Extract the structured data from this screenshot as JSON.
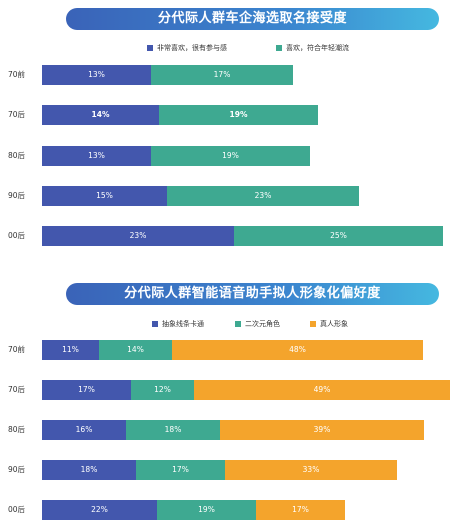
{
  "colors": {
    "blue": "#4357ad",
    "teal": "#3ea991",
    "orange": "#f4a42c"
  },
  "chart_data": [
    {
      "type": "bar",
      "orientation": "horizontal",
      "stacked": true,
      "title": "分代际人群车企海选取名接受度",
      "categories": [
        "70前",
        "70后",
        "80后",
        "90后",
        "00后"
      ],
      "series": [
        {
          "name": "非常喜欢，很有参与感",
          "color": "#4357ad",
          "values": [
            13,
            14,
            13,
            15,
            23
          ]
        },
        {
          "name": "喜欢，符合年轻潮流",
          "color": "#3ea991",
          "values": [
            17,
            19,
            19,
            23,
            25
          ]
        }
      ]
    },
    {
      "type": "bar",
      "orientation": "horizontal",
      "stacked": true,
      "title": "分代际人群智能语音助手拟人形象化偏好度",
      "categories": [
        "70前",
        "70后",
        "80后",
        "90后",
        "00后"
      ],
      "series": [
        {
          "name": "抽象线条卡通",
          "color": "#4357ad",
          "values": [
            11,
            17,
            16,
            18,
            22
          ]
        },
        {
          "name": "二次元角色",
          "color": "#3ea991",
          "values": [
            14,
            12,
            18,
            17,
            19
          ]
        },
        {
          "name": "真人形象",
          "color": "#f4a42c",
          "values": [
            48,
            49,
            39,
            33,
            17
          ]
        }
      ]
    }
  ]
}
